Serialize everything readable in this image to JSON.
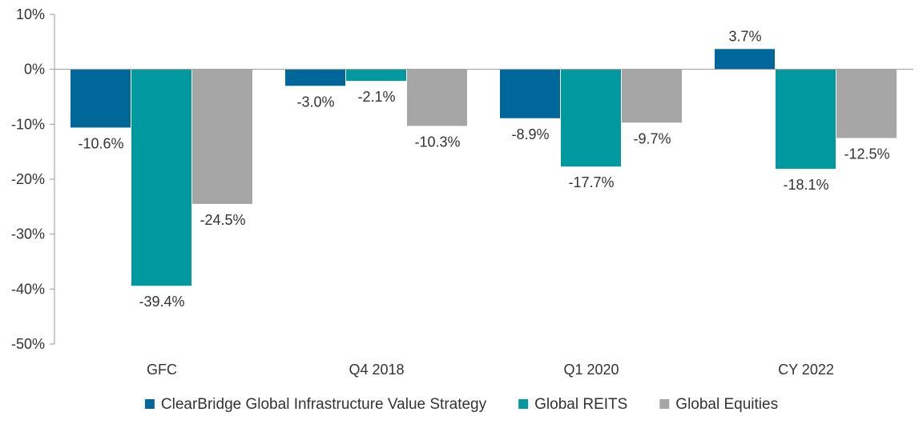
{
  "chart_data": {
    "type": "bar",
    "title": "",
    "xlabel": "",
    "ylabel": "",
    "ylim": [
      -50,
      10
    ],
    "yticks": [
      10,
      0,
      -10,
      -20,
      -30,
      -40,
      -50
    ],
    "ytick_labels": [
      "10%",
      "0%",
      "-10%",
      "-20%",
      "-30%",
      "-40%",
      "-50%"
    ],
    "grid": false,
    "legend_position": "bottom",
    "categories": [
      "GFC",
      "Q4 2018",
      "Q1 2020",
      "CY 2022"
    ],
    "series": [
      {
        "name": "ClearBridge Global Infrastructure Value Strategy",
        "color": "#00679A",
        "values": [
          -10.6,
          -3.0,
          -8.9,
          3.7
        ],
        "labels": [
          "-10.6%",
          "-3.0%",
          "-8.9%",
          "3.7%"
        ]
      },
      {
        "name": "Global REITS",
        "color": "#00999F",
        "values": [
          -39.4,
          -2.1,
          -17.7,
          -18.1
        ],
        "labels": [
          "-39.4%",
          "-2.1%",
          "-17.7%",
          "-18.1%"
        ]
      },
      {
        "name": "Global Equities",
        "color": "#A6A6A6",
        "values": [
          -24.5,
          -10.3,
          -9.7,
          -12.5
        ],
        "labels": [
          "-24.5%",
          "-10.3%",
          "-9.7%",
          "-12.5%"
        ]
      }
    ]
  }
}
